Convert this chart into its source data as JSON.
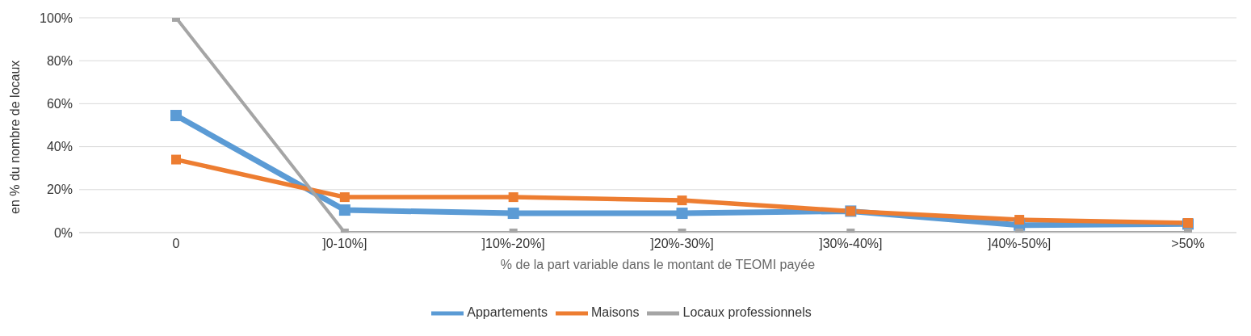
{
  "chart_data": {
    "type": "line",
    "xlabel": "% de la part variable  dans le montant de TEOMI payée",
    "ylabel": "en % du nombre de locaux",
    "categories": [
      "0",
      "]0-10%]",
      "]10%-20%]",
      "]20%-30%]",
      "]30%-40%]",
      "]40%-50%]",
      ">50%"
    ],
    "series": [
      {
        "name": "Appartements",
        "color": "#5b9bd5",
        "values": [
          54.5,
          10.5,
          9,
          9,
          10,
          3.5,
          4
        ]
      },
      {
        "name": "Maisons",
        "color": "#ed7d31",
        "values": [
          34,
          16.5,
          16.5,
          15,
          10,
          6,
          4.5
        ]
      },
      {
        "name": "Locaux professionnels",
        "color": "#a5a5a5",
        "values": [
          100,
          0,
          0,
          0,
          0,
          0,
          0
        ]
      }
    ],
    "ylim": [
      0,
      100
    ],
    "yticks": [
      {
        "value": 0,
        "label": "0%"
      },
      {
        "value": 20,
        "label": "20%"
      },
      {
        "value": 40,
        "label": "40%"
      },
      {
        "value": 60,
        "label": "60%"
      },
      {
        "value": 80,
        "label": "80%"
      },
      {
        "value": 100,
        "label": "100%"
      }
    ],
    "grid": "y",
    "legend": "bottom",
    "marker": "square",
    "line_style": "solid"
  }
}
